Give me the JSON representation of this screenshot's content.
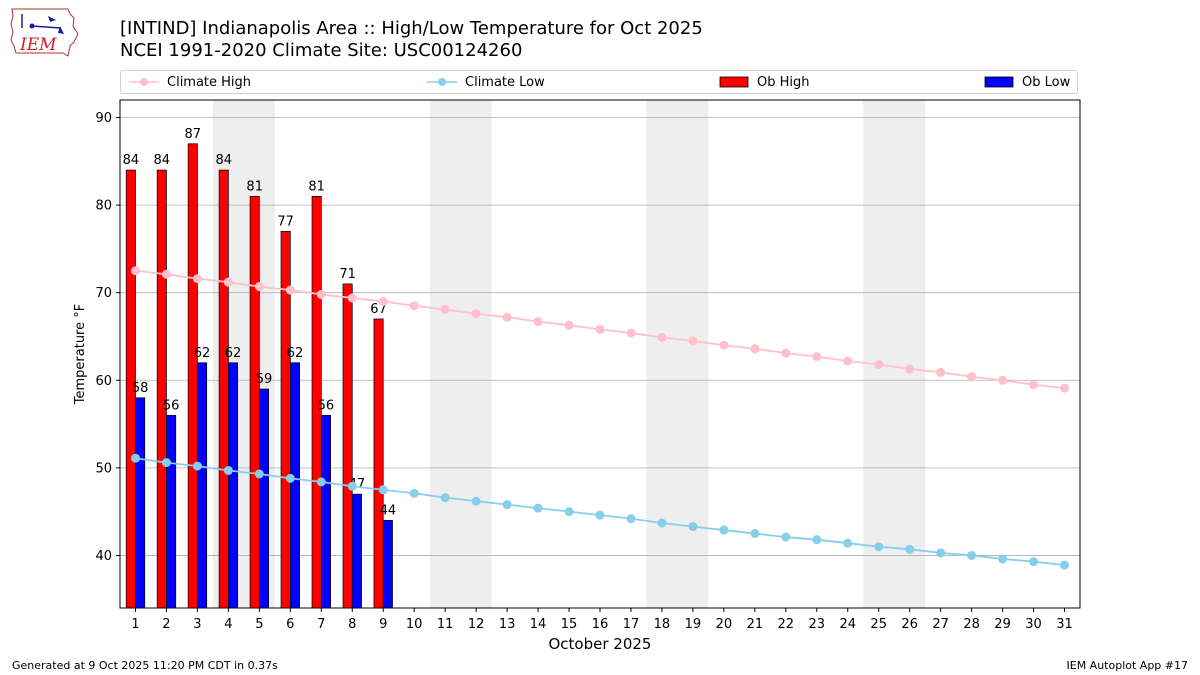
{
  "header": {
    "title_line1": "[INTIND] Indianapolis Area :: High/Low Temperature for Oct 2025",
    "title_line2": "NCEI 1991-2020 Climate Site: USC00124260"
  },
  "logo": {
    "text": "IEM"
  },
  "footer": {
    "left": "Generated at 9 Oct 2025 11:20 PM CDT in 0.37s",
    "right": "IEM Autoplot App #17"
  },
  "colors": {
    "climate_high": "#ffc0cb",
    "climate_low": "#87ceeb",
    "ob_high": "#ff0000",
    "ob_low": "#0000ff",
    "weekend_shade": "#eeeeee",
    "grid": "#b0b0b0"
  },
  "chart_data": {
    "type": "bar",
    "xlabel": "October 2025",
    "ylabel": "Temperature °F",
    "xlim": [
      0.5,
      31.5
    ],
    "ylim": [
      34,
      92
    ],
    "yticks": [
      40,
      50,
      60,
      70,
      80,
      90
    ],
    "grid": "horizontal",
    "legend_position": "top",
    "weekend_shading": [
      [
        3.5,
        5.5
      ],
      [
        10.5,
        12.5
      ],
      [
        17.5,
        19.5
      ],
      [
        24.5,
        26.5
      ]
    ],
    "days": [
      1,
      2,
      3,
      4,
      5,
      6,
      7,
      8,
      9,
      10,
      11,
      12,
      13,
      14,
      15,
      16,
      17,
      18,
      19,
      20,
      21,
      22,
      23,
      24,
      25,
      26,
      27,
      28,
      29,
      30,
      31
    ],
    "series": [
      {
        "name": "Climate High",
        "kind": "line",
        "values": [
          72.5,
          72.1,
          71.6,
          71.2,
          70.7,
          70.3,
          69.8,
          69.4,
          69.0,
          68.5,
          68.1,
          67.6,
          67.2,
          66.7,
          66.3,
          65.8,
          65.4,
          64.9,
          64.5,
          64.0,
          63.6,
          63.1,
          62.7,
          62.2,
          61.8,
          61.3,
          60.9,
          60.4,
          60.0,
          59.5,
          59.1
        ]
      },
      {
        "name": "Climate Low",
        "kind": "line",
        "values": [
          51.1,
          50.6,
          50.2,
          49.7,
          49.3,
          48.8,
          48.4,
          47.9,
          47.5,
          47.1,
          46.6,
          46.2,
          45.8,
          45.4,
          45.0,
          44.6,
          44.2,
          43.7,
          43.3,
          42.9,
          42.5,
          42.1,
          41.8,
          41.4,
          41.0,
          40.7,
          40.3,
          40.0,
          39.6,
          39.3,
          38.9
        ]
      },
      {
        "name": "Ob High",
        "kind": "bar",
        "values": [
          84,
          84,
          87,
          84,
          81,
          77,
          81,
          71,
          67
        ]
      },
      {
        "name": "Ob Low",
        "kind": "bar",
        "values": [
          58,
          56,
          62,
          62,
          59,
          62,
          56,
          47,
          44
        ]
      }
    ]
  }
}
